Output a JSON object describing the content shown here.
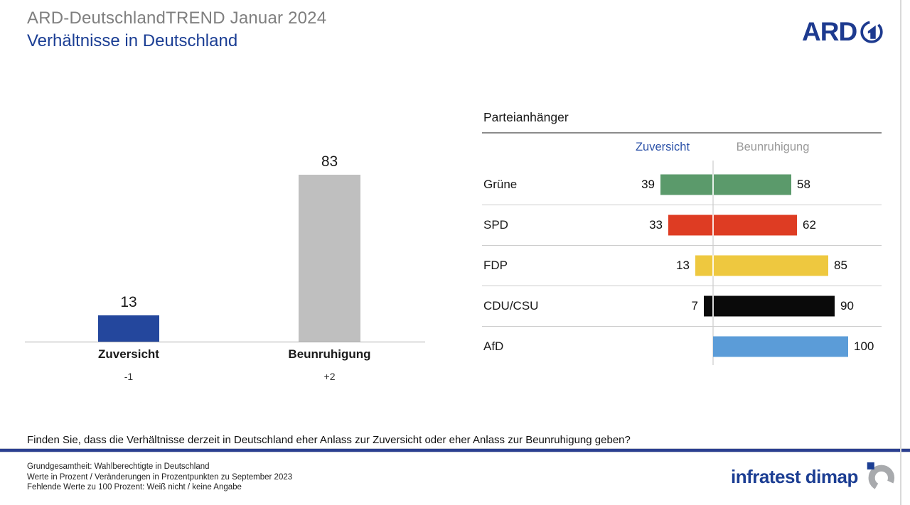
{
  "header": {
    "supertitle": "ARD-DeutschlandTREND Januar 2024",
    "title": "Verhältnisse in Deutschland",
    "ard_logo_text": "ARD"
  },
  "chart_data": [
    {
      "type": "bar",
      "title": "Verhältnisse in Deutschland",
      "categories": [
        "Zuversicht",
        "Beunruhigung"
      ],
      "values": [
        13,
        83
      ],
      "changes": [
        "-1",
        "+2"
      ],
      "colors": [
        "#24479d",
        "#bfbfbf"
      ],
      "ylim": [
        0,
        100
      ],
      "grid": false,
      "value_labels": "above bars",
      "note": "changes are vs. September 2023 in percentage points"
    },
    {
      "type": "bar",
      "subtype": "diverging-horizontal",
      "title": "Parteianhänger",
      "categories": [
        "Grüne",
        "SPD",
        "FDP",
        "CDU/CSU",
        "AfD"
      ],
      "series": [
        {
          "name": "Zuversicht",
          "values": [
            39,
            33,
            13,
            7,
            null
          ]
        },
        {
          "name": "Beunruhigung",
          "values": [
            58,
            62,
            85,
            90,
            100
          ]
        }
      ],
      "bar_colors": [
        "#5b9a6b",
        "#de3c23",
        "#eec83f",
        "#0a0a0a",
        "#5b9cd8"
      ],
      "xlim": [
        0,
        100
      ],
      "legend_position": "top",
      "legend_colors": {
        "Zuversicht": "#2b51a8",
        "Beunruhigung": "#9a9a9a"
      }
    }
  ],
  "question": "Finden Sie, dass die Verhältnisse derzeit in Deutschland eher Anlass zur Zuversicht oder eher Anlass zur Beunruhigung geben?",
  "footnotes": [
    "Grundgesamtheit: Wahlberechtigte in Deutschland",
    "Werte in Prozent / Veränderungen  in Prozentpunkten zu September 2023",
    "Fehlende Werte zu 100 Prozent: Weiß nicht / keine Angabe"
  ],
  "branding": {
    "infratest_text": "infratest dimap",
    "ard_navy": "#1d3a8f",
    "title_blue": "#1b3e94",
    "title_gray": "#7f7f7f"
  }
}
